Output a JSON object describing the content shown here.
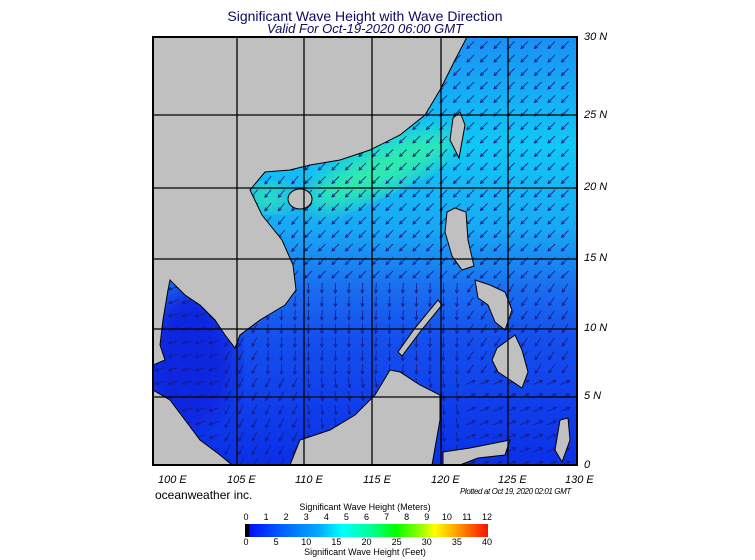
{
  "header": {
    "title": "Significant Wave Height with Wave Direction",
    "subtitle": "Valid For Oct-19-2020 06:00 GMT"
  },
  "map": {
    "region": "South China Sea",
    "lat_labels": [
      "30 N",
      "25 N",
      "20 N",
      "15 N",
      "10 N",
      "5 N",
      "0"
    ],
    "lon_labels": [
      "100 E",
      "105 E",
      "110 E",
      "115 E",
      "120 E",
      "125 E",
      "130 E"
    ],
    "land_color": "#c0c0c0",
    "arrow_color": "#1a1a80"
  },
  "footer": {
    "brand": "oceanweather inc.",
    "plotted": "Plotted at Oct 19, 2020 02:01 GMT"
  },
  "colorbar": {
    "title_meters": "Significant Wave Height (Meters)",
    "title_feet": "Significant Wave Height (Feet)",
    "meters_ticks": [
      "0",
      "1",
      "2",
      "3",
      "4",
      "5",
      "6",
      "7",
      "8",
      "9",
      "10",
      "11",
      "12"
    ],
    "feet_ticks": [
      "0",
      "5",
      "10",
      "15",
      "20",
      "25",
      "30",
      "35",
      "40"
    ],
    "colors": [
      "#000000",
      "#0010ff",
      "#00a8ff",
      "#00ffff",
      "#00ff00",
      "#ffff00",
      "#ffa000",
      "#ff1000"
    ]
  }
}
